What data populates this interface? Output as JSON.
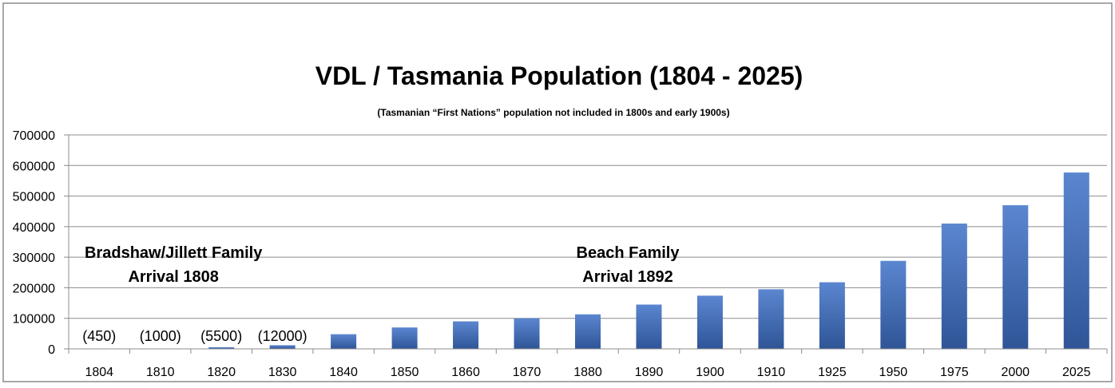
{
  "chart_data": {
    "type": "bar",
    "title": "VDL / Tasmania Population (1804 - 2025)",
    "subtitle": "(Tasmanian “First Nations” population not included in 1800s and early 1900s)",
    "xlabel": "",
    "ylabel": "",
    "ylim": [
      0,
      700000
    ],
    "yticks": [
      "0",
      "100000",
      "200000",
      "300000",
      "400000",
      "500000",
      "600000",
      "700000"
    ],
    "grid": true,
    "categories": [
      "1804",
      "1810",
      "1820",
      "1830",
      "1840",
      "1850",
      "1860",
      "1870",
      "1880",
      "1890",
      "1900",
      "1910",
      "1925",
      "1950",
      "1975",
      "2000",
      "2025"
    ],
    "values": [
      450,
      1000,
      5500,
      12000,
      48000,
      70000,
      90000,
      100000,
      113000,
      145000,
      174000,
      195000,
      218000,
      288000,
      410000,
      470000,
      577000
    ],
    "bar_color_top": "#5b86d0",
    "bar_color_bottom": "#2f5597",
    "data_labels": [
      {
        "category": "1804",
        "text": "(450)"
      },
      {
        "category": "1810",
        "text": "(1000)"
      },
      {
        "category": "1820",
        "text": "(5500)"
      },
      {
        "category": "1830",
        "text": "(12000)"
      }
    ],
    "annotations": [
      {
        "lines": [
          "Bradshaw/Jillett Family",
          "Arrival 1808"
        ],
        "anchor_category": "1820"
      },
      {
        "lines": [
          "Beach Family",
          "Arrival 1892"
        ],
        "anchor_category": "1880"
      }
    ]
  }
}
